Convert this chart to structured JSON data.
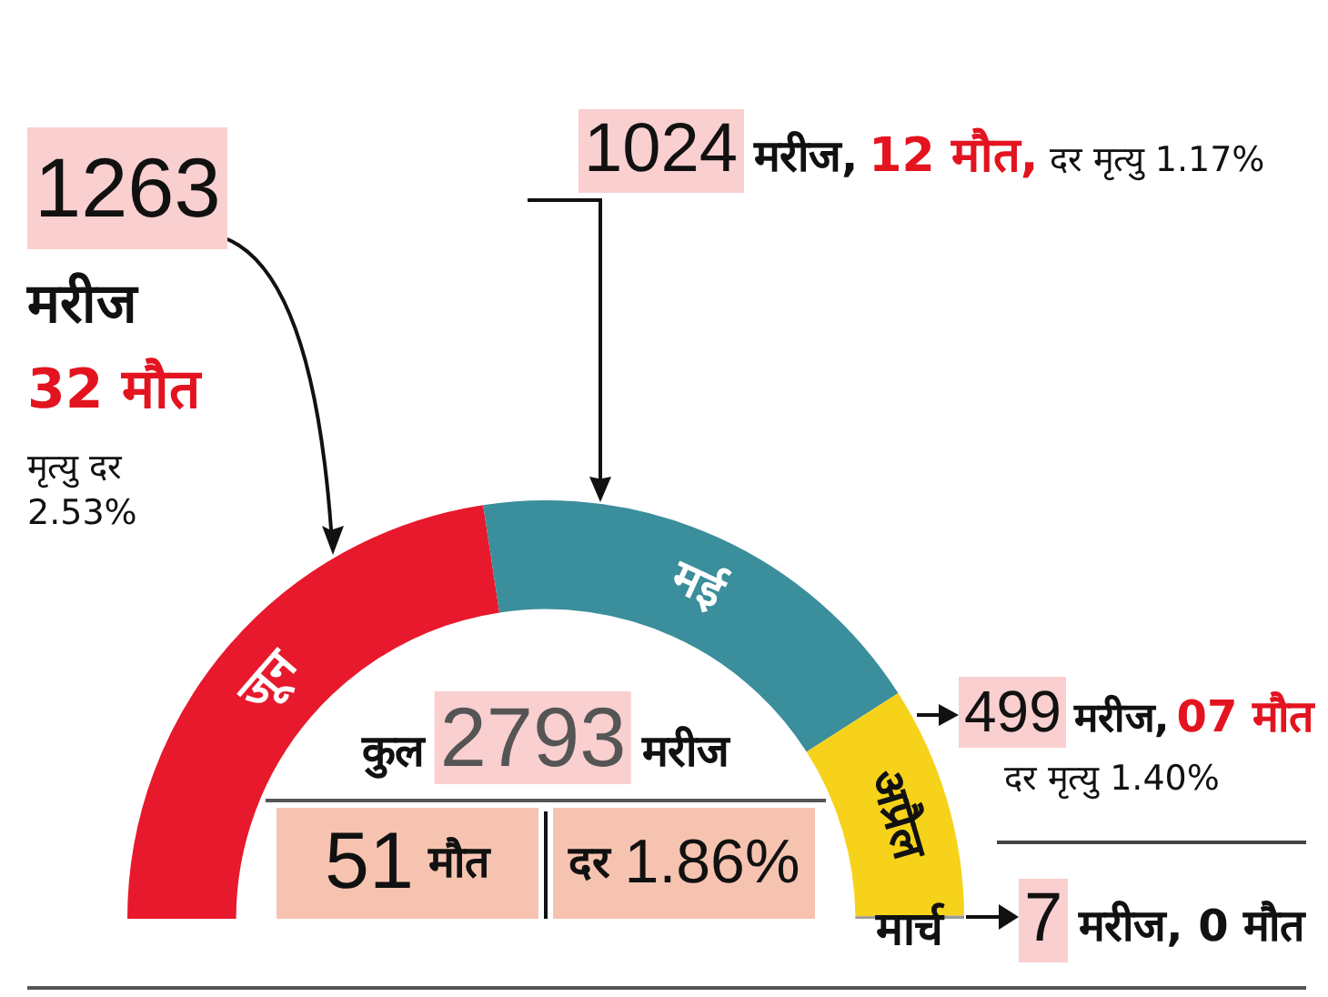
{
  "chart_data": {
    "type": "donut",
    "categories": [
      "जून",
      "मई",
      "अप्रैल",
      "मार्च"
    ],
    "values": [
      1263,
      1024,
      499,
      7
    ],
    "colors": [
      "#e8192c",
      "#3b8e9c",
      "#f6d21b",
      "#9b9b9b"
    ],
    "value_labels": [
      "1263",
      "1024",
      "499",
      "7"
    ],
    "annotations": [
      "मरीज",
      "32 मौत",
      "मृत्यु दर 2.53%",
      "मरीज,",
      "12 मौत,",
      "दर मृत्यु 1.17%",
      "मरीज,",
      "07 मौत",
      "दर मृत्यु 1.40%",
      "मरीज, 0 मौत",
      "कुल",
      "2793",
      "मरीज",
      "51",
      "मौत",
      "दर",
      "1.86%"
    ]
  }
}
